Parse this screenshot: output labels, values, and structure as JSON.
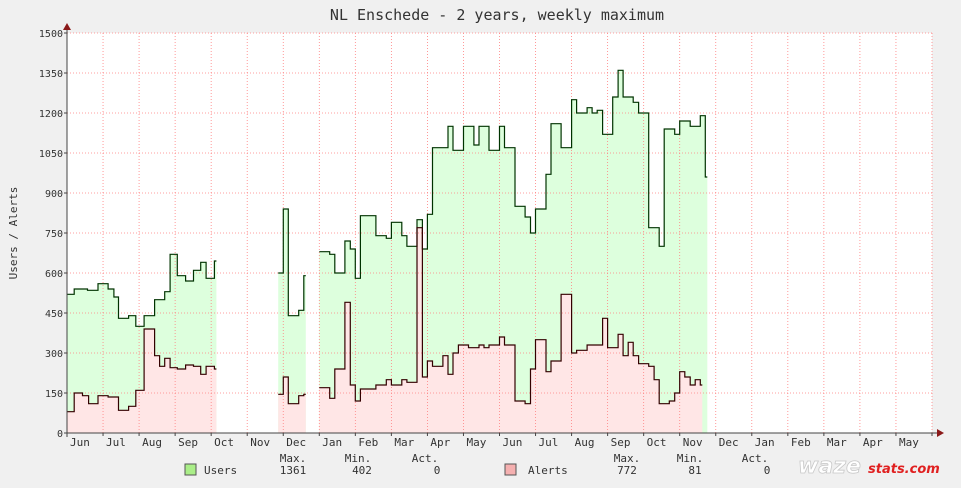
{
  "chart_data": {
    "type": "line",
    "title": "NL Enschede - 2 years, weekly maximum",
    "ylabel": "Users / Alerts",
    "xlabel": "",
    "ylim": [
      0,
      1500
    ],
    "yticks": [
      "0",
      "150",
      "300",
      "450",
      "600",
      "750",
      "900",
      "1050",
      "1200",
      "1350",
      "1500"
    ],
    "months": [
      "Jun",
      "Jul",
      "Aug",
      "Sep",
      "Oct",
      "Nov",
      "Dec",
      "Jan",
      "Feb",
      "Mar",
      "Apr",
      "May",
      "Jun",
      "Jul",
      "Aug",
      "Sep",
      "Oct",
      "Nov",
      "Dec",
      "Jan",
      "Feb",
      "Mar",
      "Apr",
      "May"
    ],
    "grid": true,
    "series": [
      {
        "name": "Users",
        "color": "#ddffdd",
        "line_color": "#003300",
        "points": [
          [
            0,
            520
          ],
          [
            0.2,
            540
          ],
          [
            0.57,
            535
          ],
          [
            0.86,
            560
          ],
          [
            1.14,
            540
          ],
          [
            1.3,
            510
          ],
          [
            1.43,
            430
          ],
          [
            1.71,
            440
          ],
          [
            1.91,
            400
          ],
          [
            2.14,
            440
          ],
          [
            2.43,
            500
          ],
          [
            2.71,
            530
          ],
          [
            2.86,
            670
          ],
          [
            3.06,
            590
          ],
          [
            3.29,
            570
          ],
          [
            3.51,
            610
          ],
          [
            3.71,
            640
          ],
          [
            3.86,
            580
          ],
          [
            4.09,
            645
          ],
          [
            null,
            null
          ],
          [
            5.86,
            600
          ],
          [
            6.0,
            840
          ],
          [
            6.14,
            440
          ],
          [
            6.43,
            460
          ],
          [
            6.57,
            590
          ],
          [
            null,
            null
          ],
          [
            7.0,
            680
          ],
          [
            7.29,
            670
          ],
          [
            7.43,
            600
          ],
          [
            7.71,
            720
          ],
          [
            7.86,
            690
          ],
          [
            8.0,
            580
          ],
          [
            8.14,
            815
          ],
          [
            8.57,
            740
          ],
          [
            8.86,
            730
          ],
          [
            9.0,
            790
          ],
          [
            9.29,
            740
          ],
          [
            9.43,
            700
          ],
          [
            9.71,
            800
          ],
          [
            9.86,
            690
          ],
          [
            10.0,
            820
          ],
          [
            10.14,
            1070
          ],
          [
            10.57,
            1150
          ],
          [
            10.71,
            1060
          ],
          [
            11.0,
            1150
          ],
          [
            11.29,
            1080
          ],
          [
            11.43,
            1150
          ],
          [
            11.71,
            1060
          ],
          [
            12.0,
            1150
          ],
          [
            12.14,
            1070
          ],
          [
            12.43,
            850
          ],
          [
            12.71,
            810
          ],
          [
            12.86,
            750
          ],
          [
            13.0,
            840
          ],
          [
            13.29,
            970
          ],
          [
            13.43,
            1160
          ],
          [
            13.71,
            1070
          ],
          [
            14.0,
            1250
          ],
          [
            14.14,
            1200
          ],
          [
            14.43,
            1220
          ],
          [
            14.57,
            1200
          ],
          [
            14.71,
            1210
          ],
          [
            14.86,
            1120
          ],
          [
            15.14,
            1260
          ],
          [
            15.29,
            1360
          ],
          [
            15.43,
            1260
          ],
          [
            15.71,
            1240
          ],
          [
            15.86,
            1200
          ],
          [
            16.14,
            770
          ],
          [
            16.43,
            700
          ],
          [
            16.57,
            1140
          ],
          [
            16.86,
            1120
          ],
          [
            17.0,
            1170
          ],
          [
            17.29,
            1150
          ],
          [
            17.57,
            1190
          ],
          [
            17.71,
            960
          ]
        ]
      },
      {
        "name": "Alerts",
        "color": "#ffe6e6",
        "line_color": "#330000",
        "points": [
          [
            0,
            80
          ],
          [
            0.2,
            150
          ],
          [
            0.43,
            140
          ],
          [
            0.6,
            110
          ],
          [
            0.86,
            140
          ],
          [
            1.14,
            135
          ],
          [
            1.43,
            85
          ],
          [
            1.71,
            100
          ],
          [
            1.91,
            160
          ],
          [
            2.14,
            390
          ],
          [
            2.43,
            290
          ],
          [
            2.57,
            250
          ],
          [
            2.71,
            280
          ],
          [
            2.86,
            245
          ],
          [
            3.06,
            240
          ],
          [
            3.29,
            255
          ],
          [
            3.51,
            250
          ],
          [
            3.71,
            220
          ],
          [
            3.86,
            250
          ],
          [
            4.09,
            240
          ],
          [
            null,
            null
          ],
          [
            5.86,
            145
          ],
          [
            6.0,
            210
          ],
          [
            6.14,
            110
          ],
          [
            6.43,
            140
          ],
          [
            6.57,
            145
          ],
          [
            null,
            null
          ],
          [
            7.0,
            170
          ],
          [
            7.29,
            130
          ],
          [
            7.43,
            240
          ],
          [
            7.71,
            490
          ],
          [
            7.86,
            180
          ],
          [
            8.0,
            120
          ],
          [
            8.14,
            165
          ],
          [
            8.57,
            180
          ],
          [
            8.86,
            200
          ],
          [
            9.0,
            180
          ],
          [
            9.29,
            200
          ],
          [
            9.43,
            190
          ],
          [
            9.71,
            770
          ],
          [
            9.86,
            210
          ],
          [
            10.0,
            270
          ],
          [
            10.14,
            250
          ],
          [
            10.43,
            290
          ],
          [
            10.57,
            220
          ],
          [
            10.71,
            300
          ],
          [
            10.86,
            330
          ],
          [
            11.14,
            320
          ],
          [
            11.43,
            330
          ],
          [
            11.57,
            320
          ],
          [
            11.71,
            330
          ],
          [
            12.0,
            360
          ],
          [
            12.14,
            330
          ],
          [
            12.43,
            120
          ],
          [
            12.71,
            110
          ],
          [
            12.86,
            240
          ],
          [
            13.0,
            350
          ],
          [
            13.29,
            230
          ],
          [
            13.43,
            270
          ],
          [
            13.71,
            520
          ],
          [
            14.0,
            300
          ],
          [
            14.14,
            310
          ],
          [
            14.43,
            330
          ],
          [
            14.71,
            330
          ],
          [
            14.86,
            430
          ],
          [
            15.0,
            320
          ],
          [
            15.29,
            370
          ],
          [
            15.43,
            290
          ],
          [
            15.57,
            340
          ],
          [
            15.71,
            290
          ],
          [
            15.86,
            260
          ],
          [
            16.14,
            250
          ],
          [
            16.29,
            200
          ],
          [
            16.43,
            110
          ],
          [
            16.57,
            110
          ],
          [
            16.71,
            120
          ],
          [
            16.86,
            150
          ],
          [
            17.0,
            230
          ],
          [
            17.14,
            210
          ],
          [
            17.29,
            180
          ],
          [
            17.43,
            200
          ],
          [
            17.57,
            180
          ]
        ]
      }
    ],
    "legend": {
      "headers": [
        "Max.",
        "Min.",
        "Act."
      ],
      "users": {
        "label": "Users",
        "max": "1361",
        "min": "402",
        "act": "0"
      },
      "alerts": {
        "label": "Alerts",
        "max": "772",
        "min": "81",
        "act": "0"
      }
    },
    "logo": {
      "part1": "waze",
      "part2": "stats.com"
    }
  }
}
